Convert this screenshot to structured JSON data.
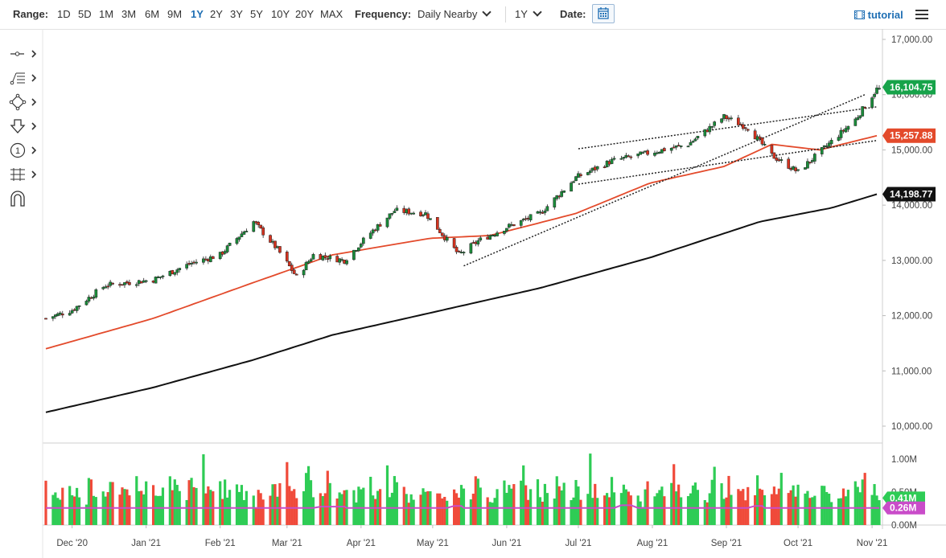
{
  "toolbar": {
    "range_label": "Range:",
    "ranges": [
      "1D",
      "5D",
      "1M",
      "3M",
      "6M",
      "9M",
      "1Y",
      "2Y",
      "3Y",
      "5Y",
      "10Y",
      "20Y",
      "MAX"
    ],
    "active_range": "1Y",
    "frequency_label": "Frequency:",
    "frequency_value": "Daily Nearby",
    "period_value": "1Y",
    "date_label": "Date:",
    "tutorial_label": "tutorial"
  },
  "icons": {
    "calendar": "calendar-icon",
    "film": "film-icon",
    "menu": "hamburger-menu-icon",
    "tools": [
      "crosshair-line-tool-icon",
      "fibonacci-tool-icon",
      "shape-tool-icon",
      "arrow-down-tool-icon",
      "annotation-number-icon",
      "measure-tool-icon",
      "magnet-icon"
    ]
  },
  "colors": {
    "up_candle": "#1a8c3a",
    "down_candle": "#d6331f",
    "ma_short": "#e34a2b",
    "ma_long": "#111111",
    "last_price_badge": "#17a34a",
    "ma_short_badge": "#e34a2b",
    "ma_long_badge": "#111111",
    "volume_up": "#2ecc55",
    "volume_down": "#f04a3a",
    "volume_avg": "#c94cc9",
    "active_range": "#1f6fb4"
  },
  "chart_data": {
    "type": "candlestick",
    "instrument_view": "Daily Nearby, 1Y",
    "x_labels": [
      "Dec '20",
      "Jan '21",
      "Feb '21",
      "Mar '21",
      "Apr '21",
      "May '21",
      "Jun '21",
      "Jul '21",
      "Aug '21",
      "Sep '21",
      "Oct '21",
      "Nov '21"
    ],
    "y_ticks": [
      "17,000.00",
      "16,000.00",
      "15,000.00",
      "14,000.00",
      "13,000.00",
      "12,000.00",
      "11,000.00",
      "10,000.00"
    ],
    "y_tick_values": [
      17000,
      16000,
      15000,
      14000,
      13000,
      12000,
      11000,
      10000
    ],
    "ylim": [
      9800,
      17300
    ],
    "last_price": "16,104.75",
    "ma_short_value": "15,257.88",
    "ma_long_value": "14,198.77",
    "close_path": [
      [
        "Nov 20 '20",
        11950
      ],
      [
        "Dec 01 '20",
        12100
      ],
      [
        "Dec 15 '20",
        12550
      ],
      [
        "Jan 04 '21",
        12650
      ],
      [
        "Jan 20 '21",
        12950
      ],
      [
        "Feb 01 '21",
        13100
      ],
      [
        "Feb 15 '21",
        13700
      ],
      [
        "Feb 25 '21",
        13200
      ],
      [
        "Mar 05 '21",
        12700
      ],
      [
        "Mar 12 '21",
        13100
      ],
      [
        "Mar 25 '21",
        13000
      ],
      [
        "Apr 05 '21",
        13500
      ],
      [
        "Apr 15 '21",
        13900
      ],
      [
        "Apr 28 '21",
        13850
      ],
      [
        "May 12 '21",
        13100
      ],
      [
        "May 20 '21",
        13350
      ],
      [
        "Jun 01 '21",
        13600
      ],
      [
        "Jun 15 '21",
        13850
      ],
      [
        "Jun 30 '21",
        14500
      ],
      [
        "Jul 15 '21",
        14800
      ],
      [
        "Jul 31 '21",
        14950
      ],
      [
        "Aug 16 '21",
        15100
      ],
      [
        "Aug 31 '21",
        15600
      ],
      [
        "Sep 10 '21",
        15400
      ],
      [
        "Sep 20 '21",
        14900
      ],
      [
        "Oct 01 '21",
        14600
      ],
      [
        "Oct 15 '21",
        15150
      ],
      [
        "Oct 25 '21",
        15550
      ],
      [
        "Nov 03 '21",
        16100
      ]
    ],
    "ma_short_path": [
      [
        "Nov 20 '20",
        11400
      ],
      [
        "Jan 04 '21",
        11950
      ],
      [
        "Feb 15 '21",
        12600
      ],
      [
        "Mar 20 '21",
        13100
      ],
      [
        "Apr 30 '21",
        13400
      ],
      [
        "May 25 '21",
        13450
      ],
      [
        "Jun 30 '21",
        13850
      ],
      [
        "Jul 31 '21",
        14400
      ],
      [
        "Aug 31 '21",
        14700
      ],
      [
        "Sep 20 '21",
        15100
      ],
      [
        "Oct 10 '21",
        15000
      ],
      [
        "Nov 03 '21",
        15257.88
      ]
    ],
    "ma_long_path": [
      [
        "Nov 20 '20",
        10250
      ],
      [
        "Jan 04 '21",
        10700
      ],
      [
        "Feb 15 '21",
        11200
      ],
      [
        "Mar 20 '21",
        11650
      ],
      [
        "Apr 30 '21",
        12050
      ],
      [
        "Jun 15 '21",
        12500
      ],
      [
        "Jul 31 '21",
        13050
      ],
      [
        "Sep 15 '21",
        13700
      ],
      [
        "Oct 15 '21",
        13950
      ],
      [
        "Nov 03 '21",
        14198.77
      ]
    ],
    "trendlines": [
      {
        "from": [
          "May 14 '21",
          12900
        ],
        "to": [
          "Oct 29 '21",
          16000
        ]
      },
      {
        "from": [
          "Jul 01 '21",
          14380
        ],
        "to": [
          "Nov 03 '21",
          15170
        ]
      },
      {
        "from": [
          "Jul 01 '21",
          15020
        ],
        "to": [
          "Nov 03 '21",
          15780
        ]
      }
    ],
    "volume": {
      "ylim": [
        0,
        1.05
      ],
      "y_ticks": [
        "1.00M",
        "0.50M",
        "0.00M"
      ],
      "y_tick_values": [
        1.0,
        0.5,
        0.0
      ],
      "last_volume": "0.41M",
      "avg_volume": "0.26M",
      "series_profile": [
        0.55,
        0.5,
        0.45,
        0.4,
        0.35,
        0.5,
        0.6,
        0.45,
        0.55,
        0.7,
        0.5,
        0.4,
        0.6,
        0.85,
        0.55,
        0.5,
        0.45,
        0.4,
        0.5,
        0.65,
        0.8,
        0.55,
        0.5,
        0.45,
        0.5,
        0.6,
        0.75,
        0.55,
        0.5,
        0.55,
        0.6,
        0.5,
        0.45,
        0.55,
        0.45,
        0.5,
        0.6,
        0.5,
        0.7,
        0.55,
        0.45,
        0.5,
        0.6,
        0.75,
        0.5,
        0.55,
        0.9,
        0.55,
        0.6,
        0.5,
        0.45,
        0.55,
        0.5,
        0.6,
        0.45,
        0.5,
        0.55,
        0.6
      ]
    }
  }
}
